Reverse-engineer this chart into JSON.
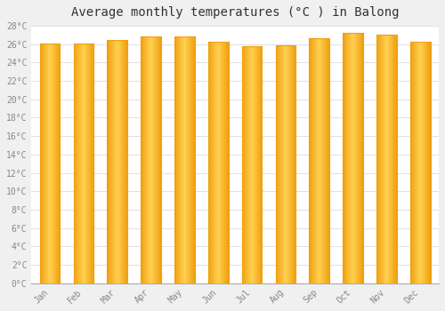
{
  "title": "Average monthly temperatures (°C ) in Balong",
  "months": [
    "Jan",
    "Feb",
    "Mar",
    "Apr",
    "May",
    "Jun",
    "Jul",
    "Aug",
    "Sep",
    "Oct",
    "Nov",
    "Dec"
  ],
  "values": [
    26.1,
    26.1,
    26.5,
    26.8,
    26.8,
    26.3,
    25.8,
    25.9,
    26.7,
    27.2,
    27.0,
    26.3
  ],
  "bar_color_center": "#FFD050",
  "bar_color_edge": "#F0A010",
  "background_color": "#F0F0F0",
  "plot_bg_color": "#FFFFFF",
  "grid_color": "#E0E0E8",
  "ytick_labels": [
    "0°C",
    "2°C",
    "4°C",
    "6°C",
    "8°C",
    "10°C",
    "12°C",
    "14°C",
    "16°C",
    "18°C",
    "20°C",
    "22°C",
    "24°C",
    "26°C",
    "28°C"
  ],
  "ytick_values": [
    0,
    2,
    4,
    6,
    8,
    10,
    12,
    14,
    16,
    18,
    20,
    22,
    24,
    26,
    28
  ],
  "ylim": [
    0,
    28
  ],
  "title_fontsize": 10,
  "tick_fontsize": 7,
  "font_family": "monospace"
}
